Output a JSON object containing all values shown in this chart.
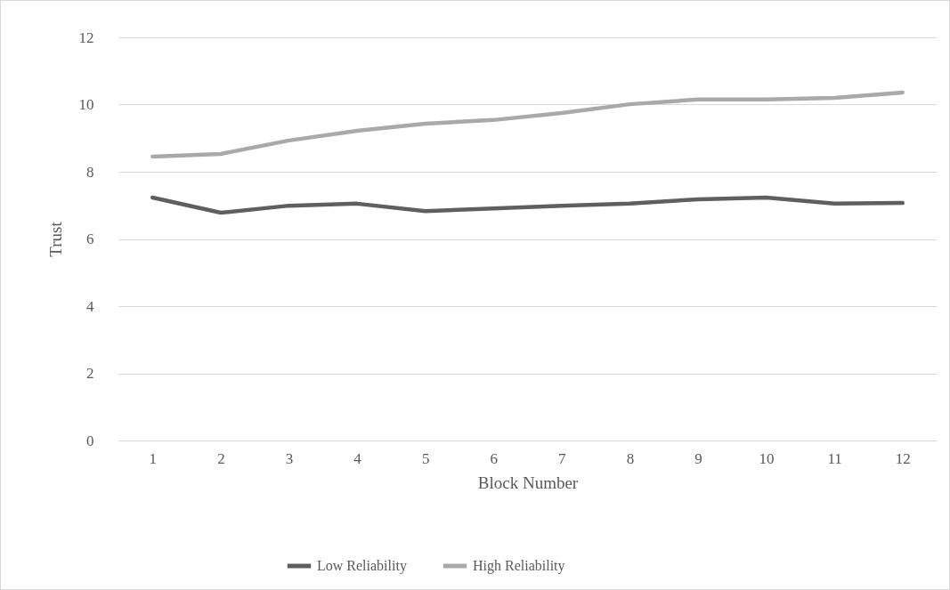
{
  "chart_data": {
    "type": "line",
    "xlabel": "Block Number",
    "ylabel": "Trust",
    "x": [
      1,
      2,
      3,
      4,
      5,
      6,
      7,
      8,
      9,
      10,
      11,
      12
    ],
    "xlim": [
      0.5,
      12.5
    ],
    "xticks": [
      1,
      2,
      3,
      4,
      5,
      6,
      7,
      8,
      9,
      10,
      11,
      12
    ],
    "series": [
      {
        "name": "Low Reliability",
        "color": "#5f5f5f",
        "values": [
          7.23,
          6.78,
          6.99,
          7.05,
          6.83,
          6.91,
          6.99,
          7.05,
          7.18,
          7.23,
          7.05,
          7.07
        ]
      },
      {
        "name": "High Reliability",
        "color": "#a9a9a9",
        "values": [
          8.45,
          8.53,
          8.93,
          9.22,
          9.43,
          9.54,
          9.75,
          10.01,
          10.15,
          10.15,
          10.2,
          10.36
        ]
      }
    ],
    "ylim": [
      0,
      12
    ],
    "yticks": [
      0,
      2,
      4,
      6,
      8,
      10,
      12
    ],
    "grid": "y",
    "legend": "bottom"
  }
}
